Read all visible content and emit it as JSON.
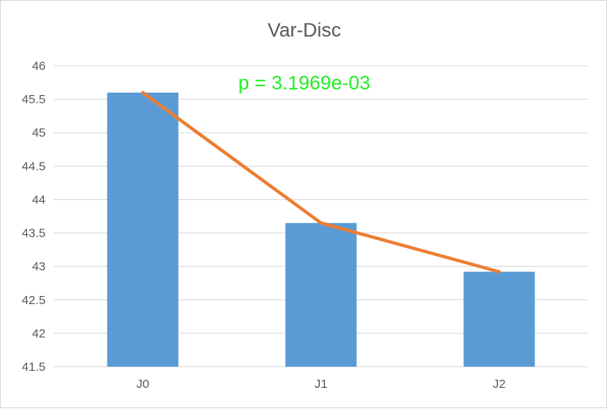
{
  "chart_data": {
    "type": "bar",
    "title": "Var-Disc",
    "xlabel": "",
    "ylabel": "",
    "categories": [
      "J0",
      "J1",
      "J2"
    ],
    "values": [
      45.6,
      43.65,
      42.92
    ],
    "trend_line": [
      45.6,
      43.65,
      42.92
    ],
    "ylim": [
      41.5,
      46
    ],
    "yticks": [
      "41.5",
      "42",
      "42.5",
      "43",
      "43.5",
      "44",
      "44.5",
      "45",
      "45.5",
      "46"
    ],
    "ytick_values": [
      41.5,
      42,
      42.5,
      43,
      43.5,
      44,
      44.5,
      45,
      45.5,
      46
    ],
    "grid": true,
    "legend": "none",
    "annotation": "p = 3.1969e-03",
    "colors": {
      "bar": "#5b9bd5",
      "line": "#ed7d31",
      "annotation": "#22ee22",
      "grid": "#d9d9d9",
      "text": "#595959"
    }
  }
}
